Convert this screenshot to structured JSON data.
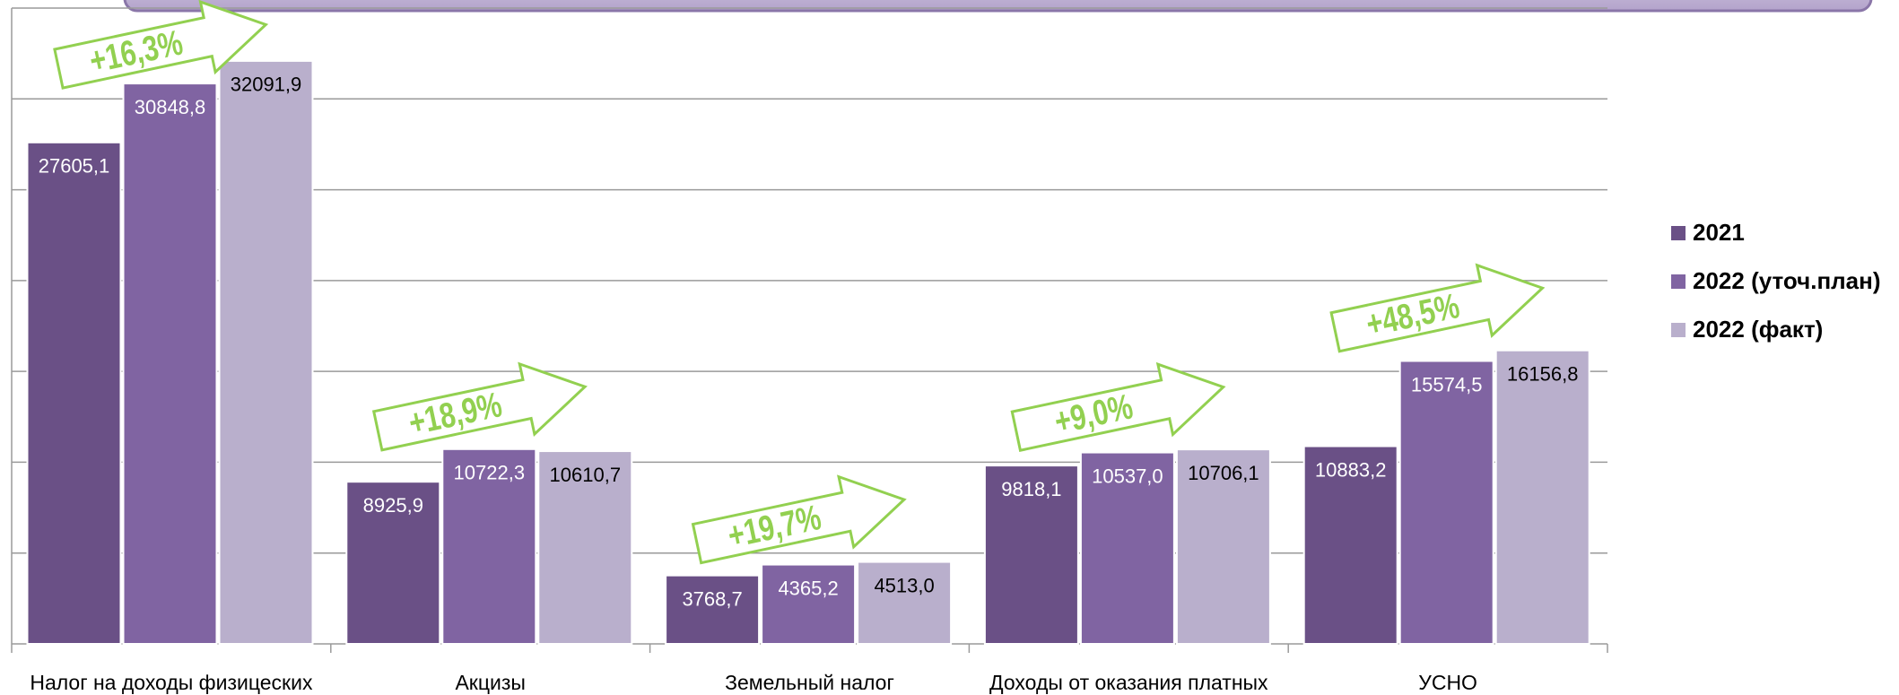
{
  "chart_data": {
    "type": "bar",
    "categories": [
      "Налог на доходы физицеских",
      "Акцизы",
      "Земельный налог",
      "Доходы от оказания платных",
      "УСНО"
    ],
    "series": [
      {
        "name": "2021",
        "color": "#6a5086",
        "values": [
          27605.1,
          8925.9,
          3768.7,
          9818.1,
          10883.2
        ],
        "value_labels": [
          "27605,1",
          "8925,9",
          "3768,7",
          "9818,1",
          "10883,2"
        ]
      },
      {
        "name": "2022 (уточ.план)",
        "color": "#8064a2",
        "values": [
          30848.8,
          10722.3,
          4365.2,
          10537.0,
          15574.5
        ],
        "value_labels": [
          "30848,8",
          "10722,3",
          "4365,2",
          "10537,0",
          "15574,5"
        ]
      },
      {
        "name": "2022 (факт)",
        "color": "#b9afcc",
        "values": [
          32091.9,
          10610.7,
          4513.0,
          10706.1,
          16156.8
        ],
        "value_labels": [
          "32091,9",
          "10610,7",
          "4513,0",
          "10706,1",
          "16156,8"
        ]
      }
    ],
    "annotations": [
      "+16,3%",
      "+18,9%",
      "+19,7%",
      "+9,0%",
      "+48,5%"
    ],
    "ylim": [
      0,
      35000
    ],
    "yticks": [
      0,
      5000,
      10000,
      15000,
      20000,
      25000,
      30000,
      35000
    ],
    "grid": true,
    "legend": "right"
  }
}
